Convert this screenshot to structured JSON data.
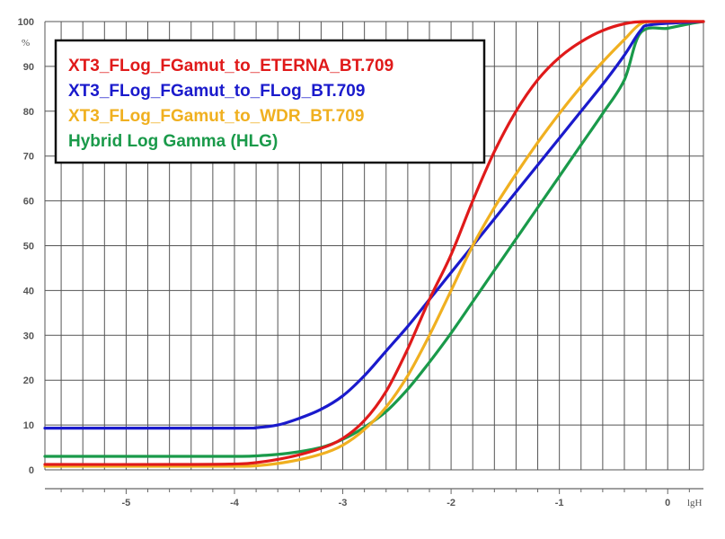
{
  "chart_data": {
    "type": "line",
    "xlabel": "lgH",
    "ylabel": "%",
    "xlim": [
      -5.75,
      0.33
    ],
    "ylim": [
      0,
      100
    ],
    "x_ticks": [
      -5,
      -4,
      -3,
      -2,
      -1,
      0
    ],
    "y_ticks": [
      0,
      10,
      20,
      30,
      40,
      50,
      60,
      70,
      80,
      90,
      100
    ],
    "grid": true,
    "legend_position": "top-left",
    "series": [
      {
        "name": "XT3_FLog_FGamut_to_ETERNA_BT.709",
        "color": "#e01a1a",
        "points": [
          [
            -5.75,
            1.2
          ],
          [
            -4.5,
            1.2
          ],
          [
            -4.0,
            1.3
          ],
          [
            -3.8,
            1.6
          ],
          [
            -3.5,
            2.8
          ],
          [
            -3.2,
            4.8
          ],
          [
            -3.0,
            7.0
          ],
          [
            -2.8,
            11.0
          ],
          [
            -2.6,
            17.5
          ],
          [
            -2.4,
            27.0
          ],
          [
            -2.2,
            38.0
          ],
          [
            -2.0,
            48.0
          ],
          [
            -1.8,
            60.0
          ],
          [
            -1.6,
            71.0
          ],
          [
            -1.4,
            80.0
          ],
          [
            -1.2,
            87.0
          ],
          [
            -1.0,
            92.0
          ],
          [
            -0.8,
            95.5
          ],
          [
            -0.6,
            98.0
          ],
          [
            -0.4,
            99.5
          ],
          [
            -0.2,
            100.0
          ],
          [
            0.33,
            100.0
          ]
        ]
      },
      {
        "name": "XT3_FLog_FGamut_to_FLog_BT.709",
        "color": "#1a1acc",
        "points": [
          [
            -5.75,
            9.3
          ],
          [
            -4.0,
            9.3
          ],
          [
            -3.8,
            9.4
          ],
          [
            -3.6,
            10.0
          ],
          [
            -3.4,
            11.5
          ],
          [
            -3.2,
            13.5
          ],
          [
            -3.0,
            16.5
          ],
          [
            -2.8,
            21.0
          ],
          [
            -2.6,
            26.5
          ],
          [
            -2.4,
            32.0
          ],
          [
            -2.2,
            38.0
          ],
          [
            -2.0,
            44.0
          ],
          [
            -1.8,
            50.0
          ],
          [
            -1.6,
            56.0
          ],
          [
            -1.4,
            62.0
          ],
          [
            -1.2,
            68.0
          ],
          [
            -1.0,
            74.0
          ],
          [
            -0.8,
            80.0
          ],
          [
            -0.6,
            86.0
          ],
          [
            -0.4,
            92.5
          ],
          [
            -0.25,
            98.0
          ],
          [
            -0.15,
            99.3
          ],
          [
            0.33,
            100.0
          ]
        ]
      },
      {
        "name": "XT3_FLog_FGamut_to_WDR_BT.709",
        "color": "#f0b020",
        "points": [
          [
            -5.75,
            0.8
          ],
          [
            -4.5,
            0.8
          ],
          [
            -4.0,
            0.8
          ],
          [
            -3.8,
            0.9
          ],
          [
            -3.5,
            1.8
          ],
          [
            -3.2,
            3.5
          ],
          [
            -3.0,
            5.5
          ],
          [
            -2.8,
            9.0
          ],
          [
            -2.6,
            14.0
          ],
          [
            -2.4,
            21.0
          ],
          [
            -2.2,
            30.0
          ],
          [
            -2.0,
            40.0
          ],
          [
            -1.8,
            50.0
          ],
          [
            -1.6,
            58.5
          ],
          [
            -1.4,
            66.0
          ],
          [
            -1.2,
            73.0
          ],
          [
            -1.0,
            79.5
          ],
          [
            -0.8,
            85.5
          ],
          [
            -0.6,
            91.0
          ],
          [
            -0.4,
            96.0
          ],
          [
            -0.25,
            99.5
          ],
          [
            -0.1,
            100.0
          ],
          [
            0.33,
            100.0
          ]
        ]
      },
      {
        "name": "Hybrid Log Gamma (HLG)",
        "color": "#1a9a4a",
        "points": [
          [
            -5.75,
            3.0
          ],
          [
            -4.5,
            3.0
          ],
          [
            -4.0,
            3.0
          ],
          [
            -3.8,
            3.1
          ],
          [
            -3.5,
            3.7
          ],
          [
            -3.2,
            5.0
          ],
          [
            -3.0,
            6.8
          ],
          [
            -2.8,
            9.5
          ],
          [
            -2.6,
            13.0
          ],
          [
            -2.4,
            18.0
          ],
          [
            -2.2,
            24.0
          ],
          [
            -2.0,
            30.5
          ],
          [
            -1.8,
            37.5
          ],
          [
            -1.6,
            44.5
          ],
          [
            -1.4,
            51.5
          ],
          [
            -1.2,
            58.5
          ],
          [
            -1.0,
            65.5
          ],
          [
            -0.8,
            72.5
          ],
          [
            -0.6,
            79.5
          ],
          [
            -0.4,
            87.0
          ],
          [
            -0.25,
            97.5
          ],
          [
            0.0,
            98.5
          ],
          [
            0.2,
            99.5
          ],
          [
            0.33,
            100.0
          ]
        ]
      }
    ]
  }
}
